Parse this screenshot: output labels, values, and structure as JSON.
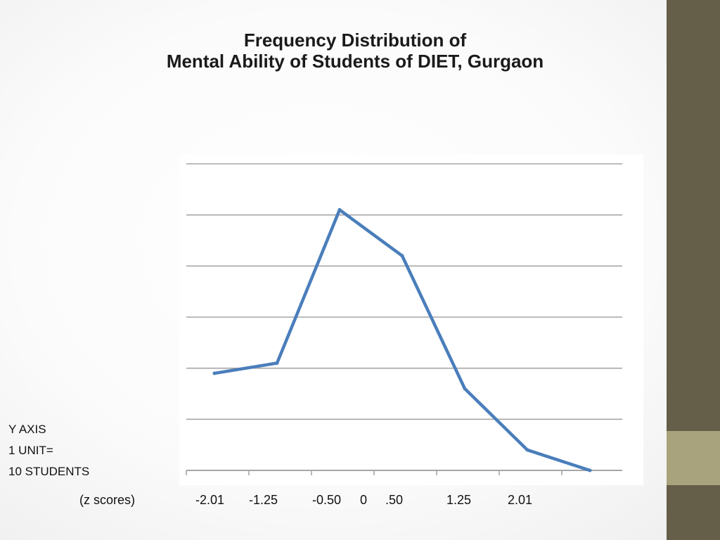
{
  "slide": {
    "title_line1": "Frequency Distribution of",
    "title_line2": "Mental Ability of Students of DIET, Gurgaon",
    "y_note": [
      "Y AXIS",
      "1 UNIT=",
      "10 STUDENTS"
    ],
    "x_note": "(z scores)"
  },
  "chart_data": {
    "type": "line",
    "title": "Frequency Distribution of Mental Ability of Students of DIET, Gurgaon",
    "xlabel": "(z scores)",
    "ylabel": "",
    "y_unit_note": "Y AXIS 1 UNIT= 10 STUDENTS",
    "x_tick_labels": [
      "-2.01",
      "-1.25",
      "-0.50",
      "0",
      ".50",
      "1.25",
      "2.01"
    ],
    "x": [
      1,
      2,
      3,
      4,
      5,
      6,
      7
    ],
    "series": [
      {
        "values": [
          1.9,
          2.1,
          5.1,
          4.2,
          1.6,
          0.4,
          0.0
        ]
      }
    ],
    "ylim": [
      0,
      6
    ],
    "y_gridlines": [
      0,
      1,
      2,
      3,
      4,
      5,
      6
    ],
    "grid": true,
    "legend": "none",
    "line_color": "#4a7ebb",
    "grid_color": "#a6a6a6"
  }
}
